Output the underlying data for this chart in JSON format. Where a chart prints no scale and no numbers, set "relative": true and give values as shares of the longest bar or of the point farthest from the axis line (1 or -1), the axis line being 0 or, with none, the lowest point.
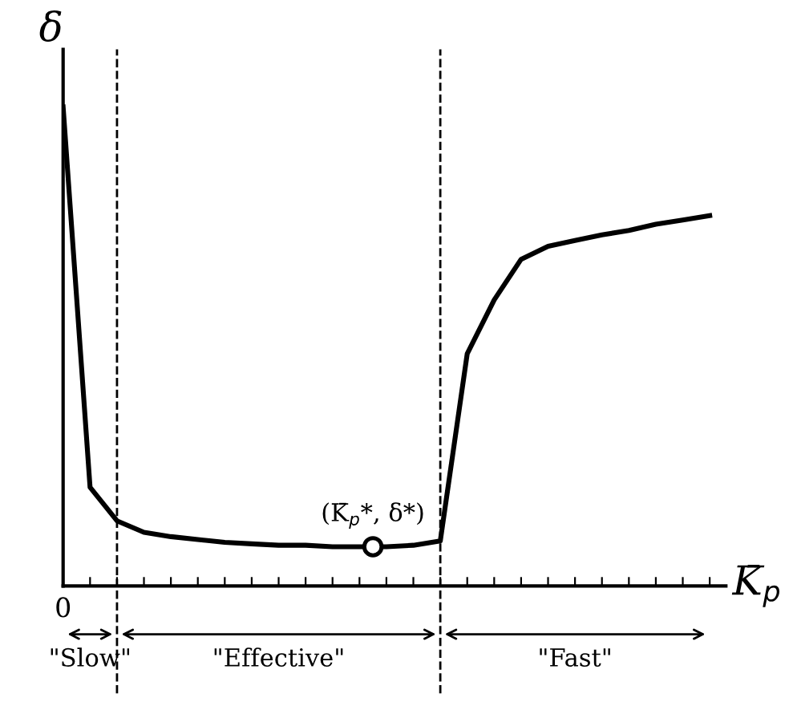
{
  "chart_data": {
    "type": "line",
    "relative": true,
    "xlabel": "K̄$_{p}$",
    "ylabel": "δ",
    "categories": [
      null,
      null,
      null,
      null,
      null,
      null,
      null,
      null,
      null,
      null,
      null,
      null,
      null,
      null,
      null,
      null,
      null,
      null,
      null,
      null,
      null,
      null,
      null,
      null,
      null
    ],
    "series": [
      {
        "color": "#000000",
        "values": [
          1,
          0.206,
          0.136,
          0.112,
          0.103,
          0.097,
          0.091,
          0.088,
          0.085,
          0.085,
          0.082,
          0.082,
          0.082,
          0.085,
          0.094,
          0.485,
          0.597,
          0.682,
          0.709,
          0.721,
          0.733,
          0.742,
          0.755,
          0.764,
          0.773
        ]
      }
    ],
    "annotations": [
      "0",
      {
        "text": "(K̄$_{p}$*, δ*)",
        "y": 0.082
      },
      "\"Slow\"",
      "\"Effective\"",
      "\"Fast\""
    ],
    "marker": "none",
    "line_style": "solid",
    "legend": false
  }
}
